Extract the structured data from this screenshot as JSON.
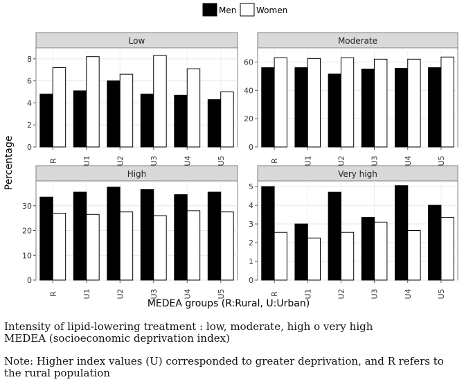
{
  "legend": {
    "position": "top-center",
    "entries": [
      {
        "label": "Men",
        "color": "#000000"
      },
      {
        "label": "Women",
        "color": "#ffffff"
      }
    ]
  },
  "chart_data": {
    "type": "bar",
    "facets": [
      {
        "title": "Low",
        "ylim": [
          0,
          9
        ],
        "ticks": [
          0,
          2,
          4,
          6,
          8
        ],
        "series": [
          {
            "name": "Men",
            "values": [
              4.8,
              5.1,
              6.0,
              4.8,
              4.7,
              4.3
            ]
          },
          {
            "name": "Women",
            "values": [
              7.2,
              8.2,
              6.6,
              8.3,
              7.1,
              5.0
            ]
          }
        ]
      },
      {
        "title": "Moderate",
        "ylim": [
          0,
          70
        ],
        "ticks": [
          0,
          20,
          40,
          60
        ],
        "series": [
          {
            "name": "Men",
            "values": [
              56,
              56,
              51.5,
              55,
              55.5,
              56
            ]
          },
          {
            "name": "Women",
            "values": [
              63,
              62.5,
              63,
              62,
              62,
              63.5
            ]
          }
        ]
      },
      {
        "title": "High",
        "ylim": [
          0,
          40
        ],
        "ticks": [
          0,
          10,
          20,
          30
        ],
        "series": [
          {
            "name": "Men",
            "values": [
              33.5,
              35.5,
              37.5,
              36.5,
              34.5,
              35.5
            ]
          },
          {
            "name": "Women",
            "values": [
              27,
              26.5,
              27.5,
              26,
              28,
              27.5
            ]
          }
        ]
      },
      {
        "title": "Very high",
        "ylim": [
          0,
          5.3
        ],
        "ticks": [
          0,
          1,
          2,
          3,
          4,
          5
        ],
        "series": [
          {
            "name": "Men",
            "values": [
              5.0,
              3.0,
              4.7,
              3.35,
              5.05,
              4.0
            ]
          },
          {
            "name": "Women",
            "values": [
              2.55,
              2.25,
              2.55,
              3.1,
              2.65,
              3.35
            ]
          }
        ]
      }
    ],
    "categories": [
      "R",
      "U1",
      "U2",
      "U3",
      "U4",
      "U5"
    ],
    "xlabel": "MEDEA groups (R:Rural, U:Urban)",
    "ylabel": "Percentage",
    "grid": true
  },
  "caption": {
    "line1": "Intensity of lipid-lowering treatment : low, moderate, high o very high",
    "line2": "MEDEA (socioeconomic deprivation index)",
    "line3": "Note: Higher index values (U) corresponded to greater deprivation, and R refers to",
    "line4": "the rural population"
  }
}
